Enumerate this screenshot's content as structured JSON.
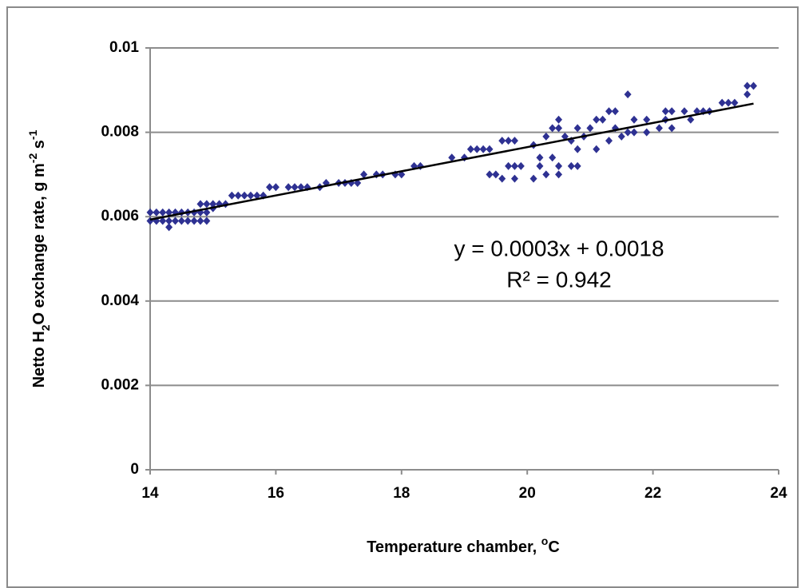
{
  "chart_data": {
    "type": "scatter",
    "y_label": [
      "Netto H",
      "2",
      "O exchange rate, g m",
      "-2",
      " s",
      "-1"
    ],
    "x_label": [
      "Temperature chamber, ",
      "o",
      "C"
    ],
    "annotations": [
      "y = 0.0003x + 0.0018",
      "R² = 0.942"
    ],
    "color": "#2e3192",
    "x": [
      14,
      14.1,
      14.2,
      14.3,
      14.4,
      14.5,
      14.6,
      14.7,
      14.8,
      14.9,
      14,
      14.1,
      14.2,
      14.3,
      14.4,
      14.5,
      14.6,
      14.7,
      14.8,
      14.9,
      14.3,
      14.8,
      14.9,
      15,
      15.1,
      15.2,
      15,
      15.3,
      15.4,
      15.5,
      15.6,
      15.7,
      15.8,
      15.9,
      16,
      16.2,
      16.3,
      16.4,
      16.5,
      16.7,
      16.8,
      17,
      17.1,
      17.2,
      17.3,
      17.4,
      17.6,
      17.7,
      17.9,
      18,
      18.2,
      18.3,
      18.8,
      19,
      19.1,
      19.2,
      19.3,
      19.4,
      19.6,
      19.7,
      19.8,
      19.4,
      19.5,
      19.6,
      19.8,
      19.7,
      19.8,
      19.9,
      20.1,
      20.1,
      20.2,
      20.2,
      20.3,
      20.4,
      20.5,
      20.5,
      20.4,
      20.5,
      20.5,
      20.3,
      20.6,
      20.7,
      20.8,
      20.8,
      20.7,
      20.8,
      20.9,
      21,
      21.1,
      21.2,
      21.1,
      21.3,
      21.3,
      21.4,
      21.4,
      21.5,
      21.6,
      21.7,
      21.6,
      21.7,
      21.9,
      21.9,
      22.1,
      22.2,
      22.2,
      22.3,
      22.3,
      22.5,
      22.6,
      22.7,
      22.8,
      22.9,
      23.1,
      23.2,
      23.3,
      23.5,
      23.5,
      23.6
    ],
    "values": [
      0.0061,
      0.0061,
      0.0061,
      0.0061,
      0.0061,
      0.0061,
      0.0061,
      0.0061,
      0.0061,
      0.0061,
      0.0059,
      0.0059,
      0.0059,
      0.0059,
      0.0059,
      0.0059,
      0.0059,
      0.0059,
      0.0059,
      0.0059,
      0.00575,
      0.0063,
      0.0063,
      0.0063,
      0.0063,
      0.0063,
      0.0062,
      0.0065,
      0.0065,
      0.0065,
      0.0065,
      0.0065,
      0.0065,
      0.0067,
      0.0067,
      0.0067,
      0.0067,
      0.0067,
      0.0067,
      0.0067,
      0.0068,
      0.0068,
      0.0068,
      0.0068,
      0.0068,
      0.007,
      0.007,
      0.007,
      0.007,
      0.007,
      0.0072,
      0.0072,
      0.0074,
      0.0074,
      0.0076,
      0.0076,
      0.0076,
      0.0076,
      0.0078,
      0.0078,
      0.0078,
      0.007,
      0.007,
      0.0069,
      0.0069,
      0.0072,
      0.0072,
      0.0072,
      0.0077,
      0.0069,
      0.0072,
      0.0074,
      0.007,
      0.0074,
      0.0072,
      0.007,
      0.0081,
      0.0081,
      0.0083,
      0.0079,
      0.0079,
      0.0072,
      0.0072,
      0.0076,
      0.0078,
      0.0081,
      0.0079,
      0.0081,
      0.0083,
      0.0083,
      0.0076,
      0.0078,
      0.0085,
      0.0085,
      0.0081,
      0.0079,
      0.008,
      0.008,
      0.0089,
      0.0083,
      0.0083,
      0.008,
      0.0081,
      0.0083,
      0.0085,
      0.0085,
      0.0081,
      0.0085,
      0.0083,
      0.0085,
      0.0085,
      0.0085,
      0.0087,
      0.0087,
      0.0087,
      0.0089,
      0.0091,
      0.0091
    ],
    "trendline": {
      "color": "#000000",
      "x": [
        14,
        23.6
      ],
      "values": [
        0.00593,
        0.00868
      ]
    },
    "xlim": [
      14,
      24
    ],
    "xticks": [
      14,
      16,
      18,
      20,
      22,
      24
    ],
    "ylim": [
      0,
      0.01
    ],
    "yticks": [
      0,
      0.002,
      0.004,
      0.006,
      0.008,
      0.01
    ],
    "grid": true
  }
}
